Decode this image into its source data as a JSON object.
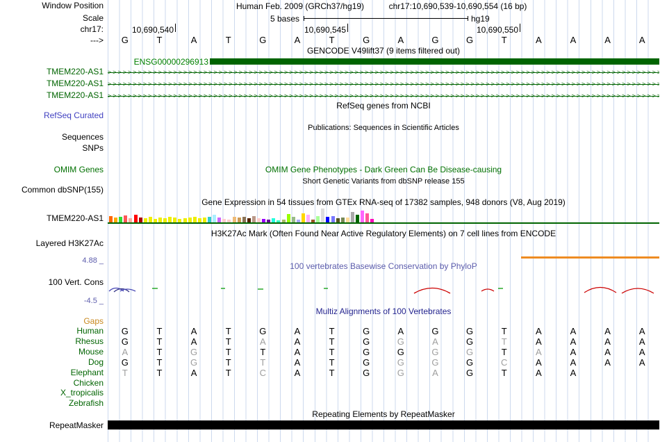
{
  "colors": {
    "gene_green": "#006400",
    "ensg_green": "#008000",
    "refseq_blue": "#4040c0",
    "omim_green": "#007000",
    "phylop_slate": "#5c5cac",
    "multiz_navy": "#23238e",
    "gaps_orange": "#c8881e",
    "species_green": "#006400",
    "gray_base": "#9e9e9e",
    "h3k_orange": "#ee8c22",
    "grid_blue": "#ccd9ee",
    "wiggle_red": "#cc0000",
    "wiggle_green": "#009900",
    "wiggle_blue": "#4646b4"
  },
  "header": {
    "window_label": "Window Position",
    "assembly": "Human Feb. 2009 (GRCh37/hg19)",
    "position": "chr17:10,690,539-10,690,554 (16 bp)",
    "scale_label": "Scale",
    "scale_value": "5 bases",
    "assembly_short": "hg19",
    "chrom_label": "chr17:",
    "coords": [
      "10,690,540",
      "10,690,545",
      "10,690,550"
    ],
    "strand_label": "--->",
    "sequence": [
      "G",
      "T",
      "A",
      "T",
      "G",
      "A",
      "T",
      "G",
      "A",
      "G",
      "G",
      "T",
      "A",
      "A",
      "A",
      "A"
    ]
  },
  "gencode": {
    "title": "GENCODE V49lift37 (9 items filtered out)",
    "gene_id": "ENSG00000296913",
    "items": [
      "TMEM220-AS1",
      "TMEM220-AS1",
      "TMEM220-AS1"
    ],
    "strand_arrows": ">>>>>>>>>>>>>>>>>>>>>>>>>>>>>>>>>>>>>>>>>>>>>>>>>>>>>>>>>>>>>>>>>>>>>>>>>>>>>>>>>>>>>>>>>>>>>>>>>>>>>>>>>>>>>>>>>>>>"
  },
  "refseq": {
    "title": "RefSeq genes from NCBI",
    "label": "RefSeq Curated"
  },
  "publications": {
    "title": "Publications: Sequences in Scientific Articles",
    "sequences_label": "Sequences",
    "snps_label": "SNPs"
  },
  "omim": {
    "title": "OMIM Gene Phenotypes - Dark Green Can Be Disease-causing",
    "label": "OMIM Genes"
  },
  "dbsnp": {
    "title": "Short Genetic Variants from dbSNP release 155",
    "label": "Common dbSNP(155)"
  },
  "gtex": {
    "title": "Gene Expression in 54 tissues from GTEx RNA-seq of 17382 samples, 948 donors (V8, Aug 2019)",
    "label": "TMEM220-AS1",
    "bars": [
      {
        "h": 10,
        "c": "#FF6600"
      },
      {
        "h": 8,
        "c": "#FFAA00"
      },
      {
        "h": 9,
        "c": "#33DD33"
      },
      {
        "h": 11,
        "c": "#FF5555"
      },
      {
        "h": 7,
        "c": "#FFAA99"
      },
      {
        "h": 12,
        "c": "#FF0000"
      },
      {
        "h": 8,
        "c": "#AA0000"
      },
      {
        "h": 7,
        "c": "#EEEE00"
      },
      {
        "h": 9,
        "c": "#EEEE00"
      },
      {
        "h": 6,
        "c": "#EEEE00"
      },
      {
        "h": 8,
        "c": "#EEEE00"
      },
      {
        "h": 7,
        "c": "#EEEE00"
      },
      {
        "h": 9,
        "c": "#EEEE00"
      },
      {
        "h": 8,
        "c": "#EEEE00"
      },
      {
        "h": 6,
        "c": "#EEEE00"
      },
      {
        "h": 7,
        "c": "#EEEE00"
      },
      {
        "h": 8,
        "c": "#EEEE00"
      },
      {
        "h": 9,
        "c": "#EEEE00"
      },
      {
        "h": 7,
        "c": "#EEEE00"
      },
      {
        "h": 8,
        "c": "#EEEE00"
      },
      {
        "h": 9,
        "c": "#33CCCC"
      },
      {
        "h": 12,
        "c": "#AAEEFF"
      },
      {
        "h": 8,
        "c": "#CC66FF"
      },
      {
        "h": 6,
        "c": "#FFCCCC"
      },
      {
        "h": 5,
        "c": "#FFCCCC"
      },
      {
        "h": 9,
        "c": "#EEBB77"
      },
      {
        "h": 8,
        "c": "#CC9955"
      },
      {
        "h": 9,
        "c": "#8B7355"
      },
      {
        "h": 7,
        "c": "#552200"
      },
      {
        "h": 10,
        "c": "#BB9988"
      },
      {
        "h": 7,
        "c": "#FFCCCC"
      },
      {
        "h": 6,
        "c": "#9900FF"
      },
      {
        "h": 5,
        "c": "#660099"
      },
      {
        "h": 7,
        "c": "#22FFDD"
      },
      {
        "h": 4,
        "c": "#33FFC2"
      },
      {
        "h": 5,
        "c": "#AABB66"
      },
      {
        "h": 13,
        "c": "#99FF00"
      },
      {
        "h": 9,
        "c": "#99BB88"
      },
      {
        "h": 5,
        "c": "#AAAAFF"
      },
      {
        "h": 14,
        "c": "#FFD700"
      },
      {
        "h": 12,
        "c": "#FFAAFF"
      },
      {
        "h": 5,
        "c": "#995522"
      },
      {
        "h": 10,
        "c": "#AAFF99"
      },
      {
        "h": 21,
        "c": "#DDDDDD"
      },
      {
        "h": 9,
        "c": "#0000FF"
      },
      {
        "h": 10,
        "c": "#7777FF"
      },
      {
        "h": 7,
        "c": "#555522"
      },
      {
        "h": 8,
        "c": "#778855"
      },
      {
        "h": 8,
        "c": "#FFDD99"
      },
      {
        "h": 16,
        "c": "#AAAAAA"
      },
      {
        "h": 12,
        "c": "#006600"
      },
      {
        "h": 18,
        "c": "#FF66FF"
      },
      {
        "h": 14,
        "c": "#FF5599"
      },
      {
        "h": 6,
        "c": "#FF00BB"
      }
    ]
  },
  "h3k27ac": {
    "title": "H3K27Ac Mark (Often Found Near Active Regulatory Elements) on 7 cell lines from ENCODE",
    "label": "Layered H3K27Ac"
  },
  "phylop": {
    "title": "100 vertebrates Basewise Conservation by PhyloP",
    "label": "100 Vert. Cons",
    "max_label": "4.88 _",
    "min_label": "-4.5 _"
  },
  "multiz": {
    "title": "Multiz Alignments of 100 Vertebrates",
    "gaps_label": "Gaps",
    "rows": [
      {
        "name": "Human",
        "bases": [
          "G",
          "T",
          "A",
          "T",
          "G",
          "A",
          "T",
          "G",
          "A",
          "G",
          "G",
          "T",
          "A",
          "A",
          "A",
          "A"
        ],
        "gray": []
      },
      {
        "name": "Rhesus",
        "bases": [
          "G",
          "T",
          "A",
          "T",
          "A",
          "A",
          "T",
          "G",
          "G",
          "A",
          "G",
          "T",
          "A",
          "A",
          "A",
          "A"
        ],
        "gray": [
          4,
          8,
          9,
          11
        ]
      },
      {
        "name": "Mouse",
        "bases": [
          "A",
          "T",
          "G",
          "T",
          "T",
          "A",
          "T",
          "G",
          "G",
          "G",
          "G",
          "T",
          "A",
          "A",
          "A",
          "A"
        ],
        "gray": [
          0,
          2,
          9,
          10,
          12
        ]
      },
      {
        "name": "Dog",
        "bases": [
          "G",
          "T",
          "G",
          "T",
          "T",
          "A",
          "T",
          "G",
          "G",
          "G",
          "G",
          "C",
          "A",
          "A",
          "A",
          "A"
        ],
        "gray": [
          2,
          4,
          8,
          9,
          11
        ]
      },
      {
        "name": "Elephant",
        "bases": [
          "T",
          "T",
          "A",
          "T",
          "C",
          "A",
          "T",
          "G",
          "G",
          "A",
          "G",
          "T",
          "A",
          "A",
          "",
          ""
        ],
        "gray": [
          0,
          4,
          8,
          9
        ]
      },
      {
        "name": "Chicken",
        "bases": [],
        "gray": []
      },
      {
        "name": "X_tropicalis",
        "bases": [],
        "gray": []
      },
      {
        "name": "Zebrafish",
        "bases": [],
        "gray": []
      }
    ]
  },
  "repeatmasker": {
    "title": "Repeating Elements by RepeatMasker",
    "label": "RepeatMasker"
  }
}
